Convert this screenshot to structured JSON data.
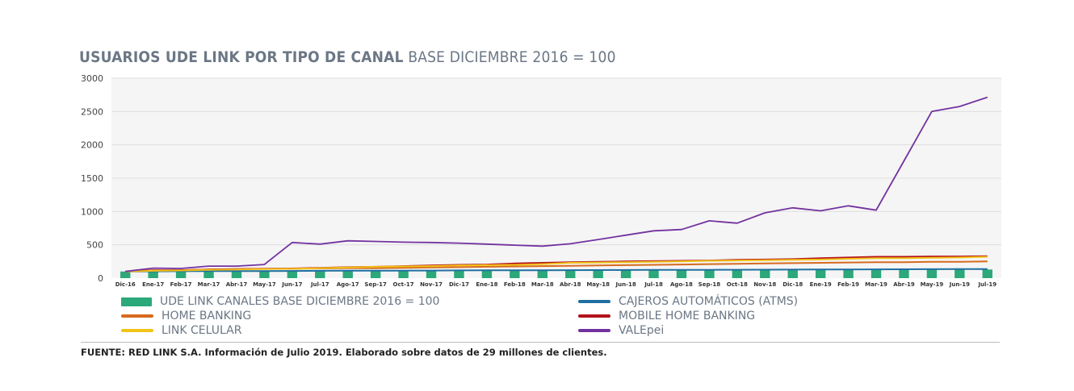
{
  "title_bold": "USUARIOS UDE LINK POR TIPO DE CANAL",
  "title_light": "BASE DICIEMBRE 2016 = 100",
  "source": "FUENTE: RED LINK S.A. Información de Julio 2019. Elaborado sobre datos de 29 millones de clientes.",
  "chart_data": {
    "type": "bar+line",
    "title": "USUARIOS UDE LINK POR TIPO DE CANAL BASE DICIEMBRE 2016 = 100",
    "ylim": [
      0,
      3000
    ],
    "yticks": [
      0,
      500,
      1000,
      1500,
      2000,
      2500,
      3000
    ],
    "grid": true,
    "legend_position": "bottom",
    "categories": [
      "Dic-16",
      "Ene-17",
      "Feb-17",
      "Mar-17",
      "Abr-17",
      "May-17",
      "Jun-17",
      "Jul-17",
      "Ago-17",
      "Sep-17",
      "Oct-17",
      "Nov-17",
      "Dic-17",
      "Ene-18",
      "Feb-18",
      "Mar-18",
      "Abr-18",
      "May-18",
      "Jun-18",
      "Jul-18",
      "Ago-18",
      "Sep-18",
      "Oct-18",
      "Nov-18",
      "Dic-18",
      "Ene-19",
      "Feb-19",
      "Mar-19",
      "Abr-19",
      "May-19",
      "Jun-19",
      "Jul-19"
    ],
    "bars": {
      "name": "UDE LINK CANALES BASE DICIEMBRE 2016 = 100",
      "color": "#2ca87a",
      "values": [
        100,
        101,
        102,
        103,
        104,
        105,
        106,
        107,
        108,
        109,
        110,
        111,
        112,
        113,
        114,
        115,
        116,
        117,
        118,
        118,
        119,
        120,
        121,
        122,
        123,
        124,
        125,
        126,
        127,
        128,
        128,
        129
      ]
    },
    "series": [
      {
        "name": "CAJEROS AUTOMÁTICOS (ATMS)",
        "color": "#1f6fa0",
        "values": [
          100,
          102,
          104,
          105,
          106,
          107,
          108,
          110,
          111,
          112,
          113,
          114,
          116,
          117,
          118,
          119,
          120,
          121,
          122,
          123,
          124,
          125,
          126,
          127,
          128,
          130,
          131,
          132,
          133,
          134,
          135,
          136
        ]
      },
      {
        "name": "HOME BANKING",
        "color": "#d66a1e",
        "values": [
          100,
          120,
          120,
          130,
          135,
          140,
          140,
          145,
          150,
          150,
          155,
          160,
          165,
          170,
          175,
          180,
          185,
          190,
          195,
          200,
          205,
          210,
          215,
          220,
          225,
          230,
          235,
          240,
          240,
          245,
          245,
          250
        ]
      },
      {
        "name": "MOBILE HOME BANKING",
        "color": "#b3121b",
        "values": [
          100,
          115,
          120,
          130,
          135,
          140,
          145,
          155,
          165,
          170,
          180,
          190,
          200,
          205,
          220,
          230,
          240,
          245,
          250,
          255,
          260,
          265,
          275,
          280,
          285,
          300,
          310,
          320,
          320,
          325,
          325,
          330
        ]
      },
      {
        "name": "LINK CELULAR",
        "color": "#f2c318",
        "values": [
          100,
          110,
          115,
          125,
          130,
          135,
          140,
          150,
          160,
          170,
          175,
          180,
          190,
          195,
          200,
          210,
          230,
          235,
          240,
          245,
          250,
          260,
          265,
          270,
          275,
          280,
          290,
          300,
          300,
          305,
          310,
          320
        ]
      },
      {
        "name": "VALEpei",
        "color": "#7233a0",
        "values": [
          100,
          150,
          145,
          180,
          180,
          205,
          535,
          510,
          560,
          550,
          540,
          535,
          525,
          510,
          495,
          480,
          515,
          580,
          645,
          710,
          730,
          860,
          825,
          980,
          1055,
          1010,
          1085,
          1020,
          1760,
          2500,
          2575,
          2715
        ]
      }
    ]
  }
}
